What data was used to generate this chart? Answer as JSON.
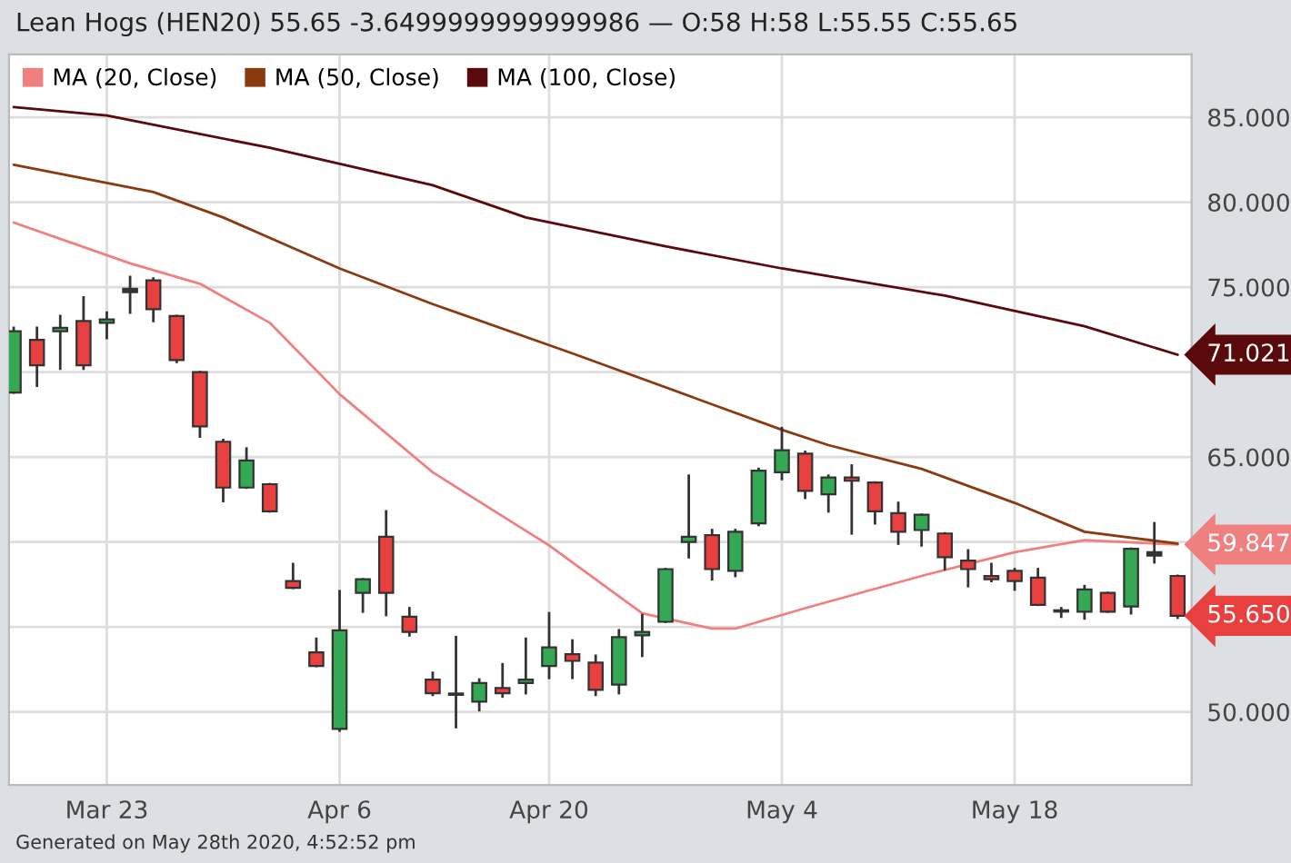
{
  "chart_data": {
    "type": "candlestick",
    "title": "Lean Hogs (HEN20) 55.65 -3.6499999999999986 — O:58 H:58 L:55.55 C:55.65",
    "categories": [
      null,
      null,
      null,
      null,
      "Mar 23",
      null,
      null,
      null,
      null,
      null,
      null,
      null,
      null,
      null,
      "Apr 6",
      null,
      null,
      null,
      null,
      null,
      null,
      null,
      null,
      "Apr 20",
      null,
      null,
      null,
      null,
      null,
      null,
      null,
      null,
      null,
      "May 4",
      null,
      null,
      null,
      null,
      null,
      null,
      null,
      null,
      null,
      "May 18",
      null,
      null,
      null,
      null,
      null,
      null,
      null
    ],
    "ohlc": [
      [
        68.8,
        72.6,
        68.8,
        72.4
      ],
      [
        71.9,
        72.6,
        69.2,
        70.4
      ],
      [
        72.4,
        73.3,
        70.2,
        72.6
      ],
      [
        73.0,
        74.4,
        70.2,
        70.4
      ],
      [
        72.9,
        73.5,
        72.0,
        73.1
      ],
      [
        74.7,
        75.6,
        73.5,
        74.9
      ],
      [
        75.4,
        75.5,
        73.0,
        73.7
      ],
      [
        73.3,
        73.3,
        70.6,
        70.7
      ],
      [
        70.0,
        70.0,
        66.2,
        66.8
      ],
      [
        65.9,
        66.0,
        62.4,
        63.2
      ],
      [
        63.2,
        65.5,
        63.2,
        64.8
      ],
      [
        63.4,
        63.4,
        61.8,
        61.8
      ],
      [
        57.7,
        58.7,
        57.3,
        57.3
      ],
      [
        53.5,
        54.3,
        52.7,
        52.7
      ],
      [
        49.0,
        57.1,
        48.9,
        54.8
      ],
      [
        57.0,
        57.8,
        55.9,
        57.8
      ],
      [
        60.3,
        61.8,
        55.7,
        57.0
      ],
      [
        55.6,
        56.1,
        54.5,
        54.7
      ],
      [
        51.9,
        52.3,
        51.0,
        51.1
      ],
      [
        51.0,
        54.4,
        49.1,
        51.0
      ],
      [
        50.6,
        51.9,
        50.1,
        51.7
      ],
      [
        51.4,
        52.8,
        50.9,
        51.1
      ],
      [
        51.7,
        54.3,
        51.1,
        51.9
      ],
      [
        52.7,
        55.8,
        52.0,
        53.8
      ],
      [
        53.4,
        54.2,
        52.0,
        53.0
      ],
      [
        52.9,
        53.3,
        51.0,
        51.3
      ],
      [
        51.6,
        54.8,
        51.1,
        54.4
      ],
      [
        54.5,
        55.7,
        53.3,
        54.7
      ],
      [
        55.3,
        58.4,
        55.3,
        58.4
      ],
      [
        60.0,
        63.9,
        59.1,
        60.3
      ],
      [
        60.4,
        60.7,
        57.8,
        58.4
      ],
      [
        58.3,
        60.7,
        58.0,
        60.6
      ],
      [
        61.1,
        64.3,
        61.0,
        64.2
      ],
      [
        64.1,
        66.7,
        63.7,
        65.4
      ],
      [
        65.2,
        65.3,
        62.6,
        63.0
      ],
      [
        62.8,
        63.9,
        61.8,
        63.8
      ],
      [
        63.8,
        64.5,
        60.5,
        63.6
      ],
      [
        63.5,
        63.5,
        61.1,
        61.8
      ],
      [
        61.7,
        62.3,
        59.9,
        60.6
      ],
      [
        60.7,
        61.6,
        59.8,
        61.6
      ],
      [
        60.5,
        60.5,
        58.4,
        59.1
      ],
      [
        58.9,
        59.5,
        57.4,
        58.4
      ],
      [
        58.0,
        58.7,
        57.7,
        57.8
      ],
      [
        58.3,
        58.4,
        57.2,
        57.7
      ],
      [
        57.9,
        58.4,
        56.3,
        56.3
      ],
      [
        55.9,
        56.1,
        55.6,
        55.9
      ],
      [
        55.9,
        57.4,
        55.5,
        57.2
      ],
      [
        57.0,
        57.0,
        55.9,
        55.9
      ],
      [
        56.2,
        59.6,
        55.8,
        59.6
      ],
      [
        59.4,
        61.1,
        58.8,
        59.2
      ],
      [
        58,
        58,
        55.55,
        55.65
      ]
    ],
    "colors": [
      "#34a853",
      "#e8403f",
      "#34a853",
      "#e8403f",
      "#34a853",
      "#333333",
      "#e8403f",
      "#e8403f",
      "#e8403f",
      "#e8403f",
      "#34a853",
      "#e8403f",
      "#e8403f",
      "#e8403f",
      "#34a853",
      "#34a853",
      "#e8403f",
      "#e8403f",
      "#e8403f",
      "#333333",
      "#34a853",
      "#e8403f",
      "#34a853",
      "#34a853",
      "#e8403f",
      "#e8403f",
      "#34a853",
      "#34a853",
      "#34a853",
      "#34a853",
      "#e8403f",
      "#34a853",
      "#34a853",
      "#34a853",
      "#e8403f",
      "#34a853",
      "#e8403f",
      "#e8403f",
      "#e8403f",
      "#34a853",
      "#e8403f",
      "#e8403f",
      "#e8403f",
      "#e8403f",
      "#e8403f",
      "#333333",
      "#34a853",
      "#e8403f",
      "#34a853",
      "#333333",
      "#e8403f"
    ],
    "value_labels": [
      null,
      null,
      null,
      null,
      null,
      null,
      null,
      null,
      null,
      null,
      null,
      null,
      null,
      null,
      null,
      null,
      null,
      null,
      null,
      null,
      null,
      null,
      null,
      null,
      null,
      null,
      null,
      null,
      null,
      null,
      null,
      null,
      null,
      null,
      null,
      null,
      null,
      null,
      null,
      null,
      null,
      null,
      null,
      null,
      null,
      null,
      null,
      null,
      null,
      null,
      "55.650"
    ],
    "series": [
      {
        "name": "MA (20, Close)",
        "type": "line",
        "color": "#f08080",
        "values": [
          78.8,
          null,
          null,
          null,
          null,
          76.4,
          null,
          null,
          75.2,
          null,
          null,
          72.9,
          null,
          null,
          68.7,
          null,
          null,
          null,
          64.1,
          null,
          null,
          null,
          null,
          59.8,
          null,
          null,
          null,
          55.8,
          null,
          null,
          54.9,
          54.9,
          null,
          null,
          56.1,
          null,
          null,
          null,
          null,
          58.0,
          null,
          null,
          null,
          59.4,
          null,
          null,
          60.1,
          null,
          null,
          null,
          59.847
        ],
        "value_labels": [
          null,
          null,
          null,
          null,
          null,
          null,
          null,
          null,
          null,
          null,
          null,
          null,
          null,
          null,
          null,
          null,
          null,
          null,
          null,
          null,
          null,
          null,
          null,
          null,
          null,
          null,
          null,
          null,
          null,
          null,
          null,
          null,
          null,
          null,
          null,
          null,
          null,
          null,
          null,
          null,
          null,
          null,
          null,
          null,
          null,
          null,
          null,
          null,
          null,
          null,
          "59.847"
        ]
      },
      {
        "name": "MA (50, Close)",
        "type": "line",
        "color": "#8b3a0f",
        "values": [
          82.2,
          null,
          null,
          null,
          null,
          null,
          80.6,
          null,
          null,
          79.1,
          null,
          null,
          null,
          null,
          76.1,
          null,
          null,
          null,
          74.0,
          null,
          null,
          null,
          null,
          null,
          71.1,
          null,
          null,
          null,
          null,
          null,
          null,
          null,
          null,
          66.6,
          null,
          65.7,
          null,
          null,
          null,
          64.3,
          null,
          null,
          null,
          62.3,
          null,
          null,
          60.6,
          null,
          null,
          null,
          59.9
        ]
      },
      {
        "name": "MA (100, Close)",
        "type": "line",
        "color": "#5a0a0a",
        "values": [
          85.6,
          null,
          null,
          null,
          85.1,
          null,
          null,
          null,
          null,
          null,
          null,
          83.2,
          null,
          null,
          null,
          null,
          null,
          null,
          81.0,
          null,
          null,
          null,
          79.1,
          null,
          null,
          null,
          null,
          null,
          77.4,
          null,
          null,
          null,
          null,
          76.1,
          null,
          null,
          null,
          null,
          null,
          null,
          74.5,
          null,
          null,
          null,
          null,
          null,
          72.7,
          null,
          null,
          null,
          71.021
        ],
        "value_labels": [
          null,
          null,
          null,
          null,
          null,
          null,
          null,
          null,
          null,
          null,
          null,
          null,
          null,
          null,
          null,
          null,
          null,
          null,
          null,
          null,
          null,
          null,
          null,
          null,
          null,
          null,
          null,
          null,
          null,
          null,
          null,
          null,
          null,
          null,
          null,
          null,
          null,
          null,
          null,
          null,
          null,
          null,
          null,
          null,
          null,
          null,
          null,
          null,
          null,
          null,
          "71.021"
        ]
      }
    ],
    "ylim": [
      45.7,
      88.7
    ],
    "yticks": [
      {
        "value": 50,
        "label": "50.000"
      },
      {
        "value": 55,
        "label": null
      },
      {
        "value": 60,
        "label": null
      },
      {
        "value": 65,
        "label": "65.000"
      },
      {
        "value": 70,
        "label": null
      },
      {
        "value": 75,
        "label": "75.000"
      },
      {
        "value": 80,
        "label": "80.000"
      },
      {
        "value": 85,
        "label": "85.000"
      }
    ],
    "grid": true,
    "legend": "top left",
    "annotations": [
      "Generated on May 28th 2020, 4:52:52 pm"
    ]
  }
}
